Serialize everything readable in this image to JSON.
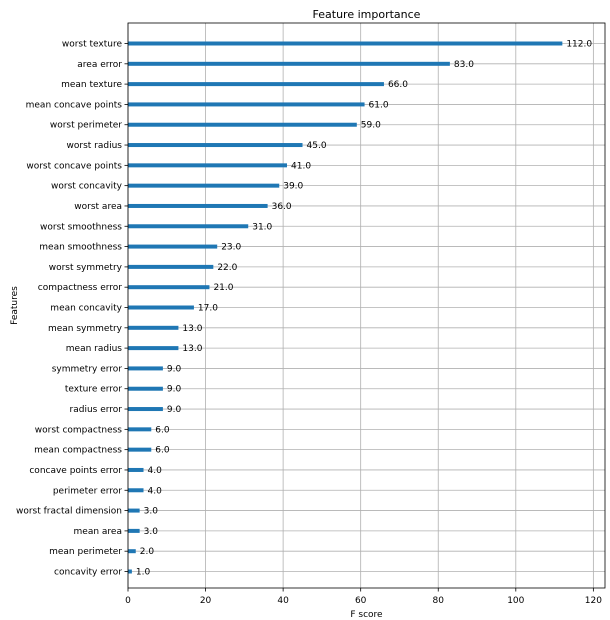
{
  "chart_data": {
    "type": "bar",
    "orientation": "horizontal",
    "title": "Feature importance",
    "xlabel": "F score",
    "ylabel": "Features",
    "xlim": [
      0,
      123
    ],
    "xticks": [
      0,
      20,
      40,
      60,
      80,
      100,
      120
    ],
    "grid": true,
    "bar_color": "#1f77b4",
    "categories": [
      "worst texture",
      "area error",
      "mean texture",
      "mean concave points",
      "worst perimeter",
      "worst radius",
      "worst concave points",
      "worst concavity",
      "worst area",
      "worst smoothness",
      "mean smoothness",
      "worst symmetry",
      "compactness error",
      "mean concavity",
      "mean symmetry",
      "mean radius",
      "symmetry error",
      "texture error",
      "radius error",
      "worst compactness",
      "mean compactness",
      "concave points error",
      "perimeter error",
      "worst fractal dimension",
      "mean area",
      "mean perimeter",
      "concavity error"
    ],
    "values": [
      112,
      83,
      66,
      61,
      59,
      45,
      41,
      39,
      36,
      31,
      23,
      22,
      21,
      17,
      13,
      13,
      9,
      9,
      9,
      6,
      6,
      4,
      4,
      3,
      3,
      2,
      1
    ],
    "value_labels": [
      "112.0",
      "83.0",
      "66.0",
      "61.0",
      "59.0",
      "45.0",
      "41.0",
      "39.0",
      "36.0",
      "31.0",
      "23.0",
      "22.0",
      "21.0",
      "17.0",
      "13.0",
      "13.0",
      "9.0",
      "9.0",
      "9.0",
      "6.0",
      "6.0",
      "4.0",
      "4.0",
      "3.0",
      "3.0",
      "2.0",
      "1.0"
    ]
  }
}
